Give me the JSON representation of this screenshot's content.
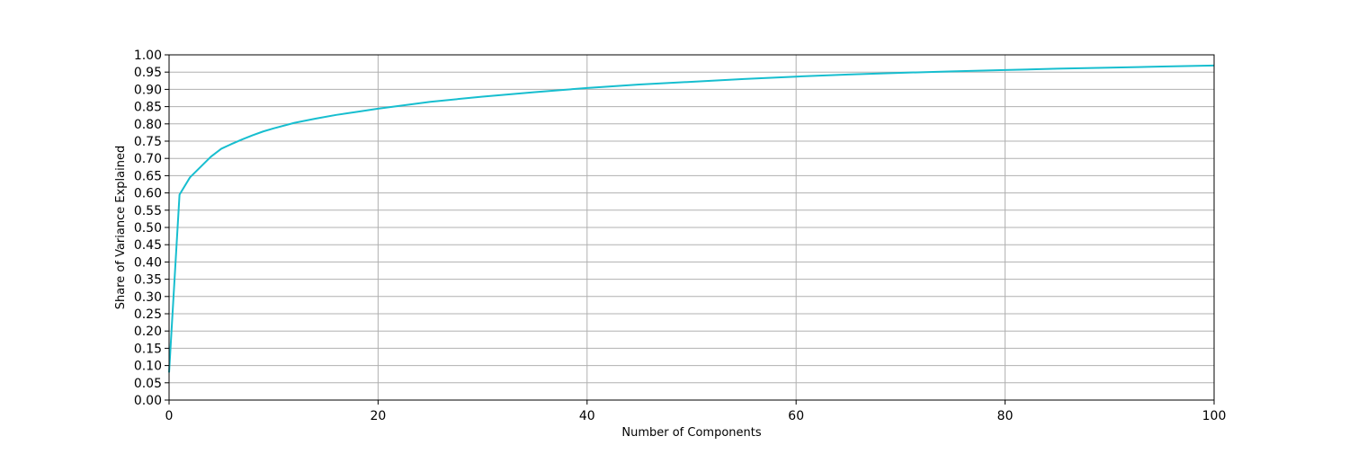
{
  "chart_data": {
    "type": "line",
    "xlabel": "Number of Components",
    "ylabel": "Share of Variance Explained",
    "xlim": [
      0,
      100
    ],
    "ylim": [
      0,
      1
    ],
    "x_ticks": [
      0,
      20,
      40,
      60,
      80,
      100
    ],
    "y_ticks": [
      0.0,
      0.05,
      0.1,
      0.15,
      0.2,
      0.25,
      0.3,
      0.35,
      0.4,
      0.45,
      0.5,
      0.55,
      0.6,
      0.65,
      0.7,
      0.75,
      0.8,
      0.85,
      0.9,
      0.95,
      1.0
    ],
    "grid": true,
    "series": [
      {
        "color": "#17becf",
        "x": [
          0,
          1,
          2,
          3,
          4,
          5,
          6,
          7,
          8,
          9,
          10,
          12,
          14,
          16,
          18,
          20,
          25,
          30,
          35,
          40,
          45,
          50,
          55,
          60,
          65,
          70,
          75,
          80,
          85,
          90,
          95,
          100
        ],
        "y": [
          0.08,
          0.595,
          0.645,
          0.675,
          0.705,
          0.728,
          0.742,
          0.755,
          0.767,
          0.778,
          0.787,
          0.803,
          0.815,
          0.826,
          0.835,
          0.844,
          0.864,
          0.879,
          0.892,
          0.904,
          0.914,
          0.922,
          0.93,
          0.937,
          0.943,
          0.948,
          0.952,
          0.956,
          0.96,
          0.963,
          0.966,
          0.969
        ]
      }
    ]
  }
}
